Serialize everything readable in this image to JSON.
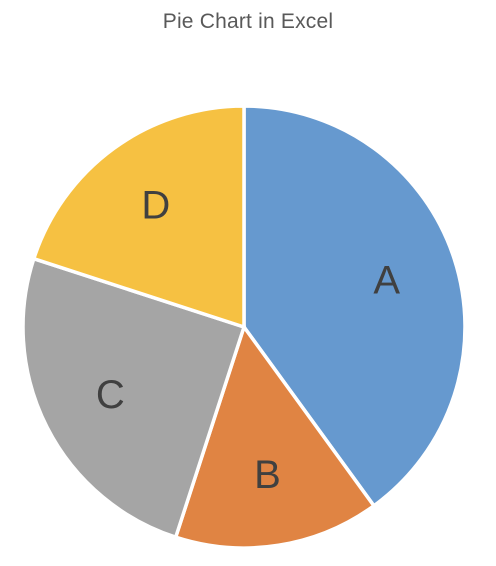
{
  "chart_data": {
    "type": "pie",
    "title": "Pie Chart in Excel",
    "categories": [
      "A",
      "B",
      "C",
      "D"
    ],
    "values": [
      40,
      15,
      25,
      20
    ],
    "colors": [
      "#6699CF",
      "#E08443",
      "#A5A5A5",
      "#F6C142"
    ],
    "start_angle_deg": 0,
    "direction": "clockwise",
    "legend": "none",
    "data_labels": "category"
  }
}
